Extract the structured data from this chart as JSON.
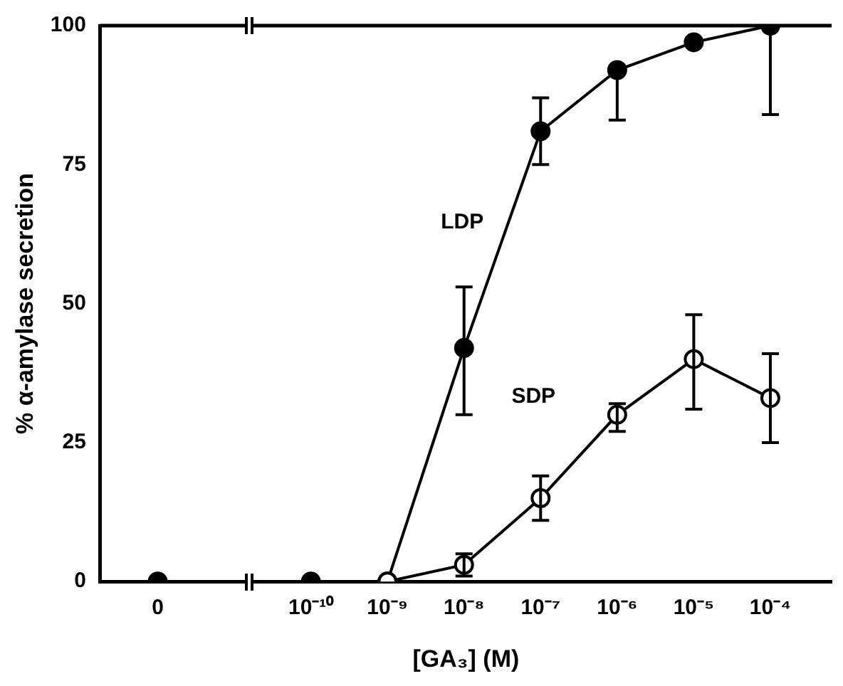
{
  "chart_data": {
    "type": "line",
    "xlabel": "[GA₃] (M)",
    "ylabel": "% α-amylase secretion",
    "categories": [
      "0",
      null,
      "10⁻¹⁰",
      "10⁻⁹",
      "10⁻⁸",
      "10⁻⁷",
      "10⁻⁶",
      "10⁻⁵",
      "10⁻⁴"
    ],
    "series": [
      {
        "name": "LDP",
        "color": "#000000",
        "values": [
          0,
          null,
          0,
          0,
          42,
          81,
          92,
          97,
          100
        ],
        "errors": [
          null,
          null,
          null,
          null,
          [
            30,
            53
          ],
          [
            75,
            87
          ],
          [
            83,
            92
          ],
          null,
          [
            84,
            100
          ]
        ]
      },
      {
        "name": "SDP",
        "color": "#000000",
        "values": [
          null,
          null,
          null,
          0,
          3,
          15,
          30,
          40,
          33
        ],
        "errors": [
          null,
          null,
          null,
          null,
          [
            1,
            5
          ],
          [
            11,
            19
          ],
          [
            27,
            32
          ],
          [
            31,
            48
          ],
          [
            25,
            41
          ]
        ]
      }
    ],
    "ylim": [
      0,
      100
    ],
    "yticks": [
      0,
      25,
      50,
      75,
      100
    ],
    "grid": false,
    "legend": false,
    "marker": "circle",
    "line_style": "solid"
  }
}
